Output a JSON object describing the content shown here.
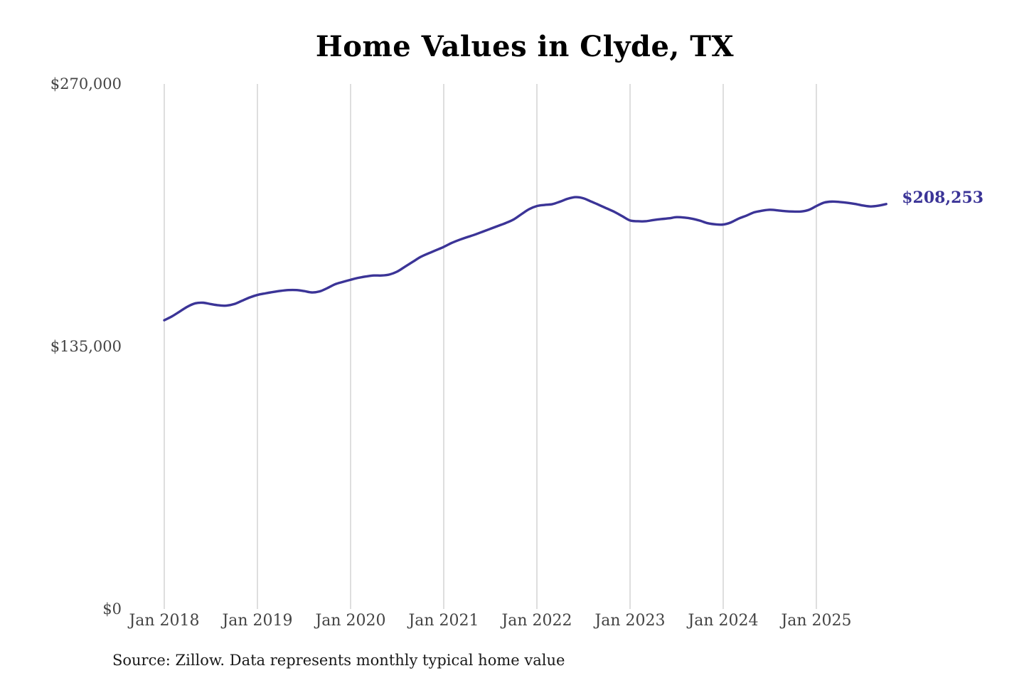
{
  "chart_data": {
    "type": "line",
    "title": "Home Values in Clyde, TX",
    "source": "Source: Zillow. Data represents monthly typical home value",
    "y_ticks": [
      "$0",
      "$135,000",
      "$270,000"
    ],
    "y_tick_values": [
      0,
      135000,
      270000
    ],
    "ylim": [
      0,
      270000
    ],
    "x_ticks": [
      "Jan 2018",
      "Jan 2019",
      "Jan 2020",
      "Jan 2021",
      "Jan 2022",
      "Jan 2023",
      "Jan 2024",
      "Jan 2025"
    ],
    "x_tick_values": [
      "2018-01",
      "2019-01",
      "2020-01",
      "2021-01",
      "2022-01",
      "2023-01",
      "2024-01",
      "2025-01"
    ],
    "grid": "vertical",
    "line_color": "#3b3497",
    "end_label": "$208,253",
    "series": [
      {
        "points": [
          [
            "2018-01",
            148500
          ],
          [
            "2018-02",
            150500
          ],
          [
            "2018-03",
            153000
          ],
          [
            "2018-04",
            155500
          ],
          [
            "2018-05",
            157200
          ],
          [
            "2018-06",
            157500
          ],
          [
            "2018-07",
            156800
          ],
          [
            "2018-08",
            156200
          ],
          [
            "2018-09",
            156000
          ],
          [
            "2018-10",
            156800
          ],
          [
            "2018-11",
            158500
          ],
          [
            "2018-12",
            160200
          ],
          [
            "2019-01",
            161500
          ],
          [
            "2019-02",
            162300
          ],
          [
            "2019-03",
            163000
          ],
          [
            "2019-04",
            163600
          ],
          [
            "2019-05",
            164000
          ],
          [
            "2019-06",
            164000
          ],
          [
            "2019-07",
            163500
          ],
          [
            "2019-08",
            162800
          ],
          [
            "2019-09",
            163300
          ],
          [
            "2019-10",
            165000
          ],
          [
            "2019-11",
            167000
          ],
          [
            "2019-12",
            168200
          ],
          [
            "2020-01",
            169300
          ],
          [
            "2020-02",
            170300
          ],
          [
            "2020-03",
            171000
          ],
          [
            "2020-04",
            171500
          ],
          [
            "2020-05",
            171500
          ],
          [
            "2020-06",
            172000
          ],
          [
            "2020-07",
            173500
          ],
          [
            "2020-08",
            176000
          ],
          [
            "2020-09",
            178500
          ],
          [
            "2020-10",
            181000
          ],
          [
            "2020-11",
            182800
          ],
          [
            "2020-12",
            184500
          ],
          [
            "2021-01",
            186200
          ],
          [
            "2021-02",
            188200
          ],
          [
            "2021-03",
            189800
          ],
          [
            "2021-04",
            191200
          ],
          [
            "2021-05",
            192500
          ],
          [
            "2021-06",
            194000
          ],
          [
            "2021-07",
            195500
          ],
          [
            "2021-08",
            197000
          ],
          [
            "2021-09",
            198500
          ],
          [
            "2021-10",
            200300
          ],
          [
            "2021-11",
            203000
          ],
          [
            "2021-12",
            205600
          ],
          [
            "2022-01",
            207200
          ],
          [
            "2022-02",
            207800
          ],
          [
            "2022-03",
            208200
          ],
          [
            "2022-04",
            209500
          ],
          [
            "2022-05",
            211000
          ],
          [
            "2022-06",
            211800
          ],
          [
            "2022-07",
            211200
          ],
          [
            "2022-08",
            209500
          ],
          [
            "2022-09",
            207800
          ],
          [
            "2022-10",
            206000
          ],
          [
            "2022-11",
            204200
          ],
          [
            "2022-12",
            202000
          ],
          [
            "2023-01",
            199800
          ],
          [
            "2023-02",
            199400
          ],
          [
            "2023-03",
            199400
          ],
          [
            "2023-04",
            200000
          ],
          [
            "2023-05",
            200500
          ],
          [
            "2023-06",
            200900
          ],
          [
            "2023-07",
            201500
          ],
          [
            "2023-08",
            201300
          ],
          [
            "2023-09",
            200700
          ],
          [
            "2023-10",
            199700
          ],
          [
            "2023-11",
            198400
          ],
          [
            "2023-12",
            197800
          ],
          [
            "2024-01",
            197700
          ],
          [
            "2024-02",
            198800
          ],
          [
            "2024-03",
            200800
          ],
          [
            "2024-04",
            202300
          ],
          [
            "2024-05",
            204000
          ],
          [
            "2024-06",
            204800
          ],
          [
            "2024-07",
            205300
          ],
          [
            "2024-08",
            205000
          ],
          [
            "2024-09",
            204600
          ],
          [
            "2024-10",
            204400
          ],
          [
            "2024-11",
            204400
          ],
          [
            "2024-12",
            205200
          ],
          [
            "2025-01",
            207200
          ],
          [
            "2025-02",
            209000
          ],
          [
            "2025-03",
            209500
          ],
          [
            "2025-04",
            209300
          ],
          [
            "2025-05",
            208900
          ],
          [
            "2025-06",
            208300
          ],
          [
            "2025-07",
            207500
          ],
          [
            "2025-08",
            207000
          ],
          [
            "2025-09",
            207400
          ],
          [
            "2025-10",
            208253
          ]
        ]
      }
    ]
  }
}
